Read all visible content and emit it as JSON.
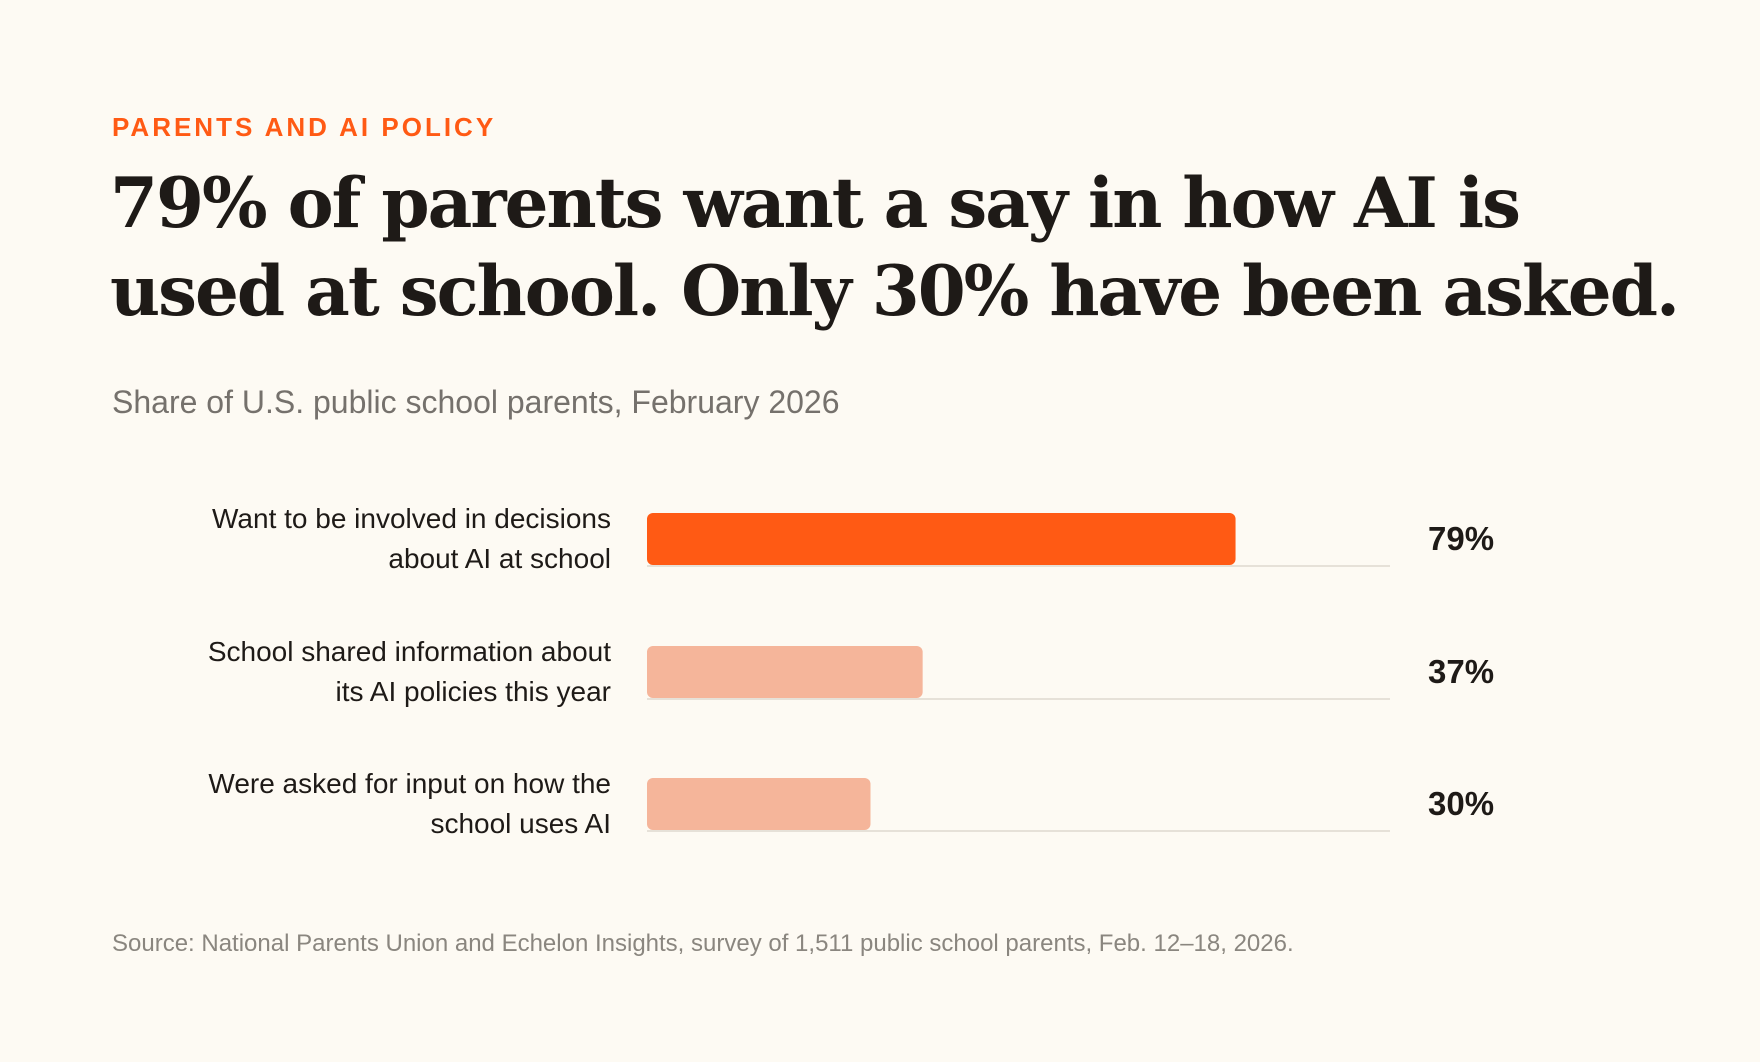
{
  "kicker": "PARENTS AND AI POLICY",
  "headline": "79% of parents want a say in how AI is used at school. Only 30% have been asked.",
  "subtitle": "Share of U.S. public school parents, February 2026",
  "source": "Source: National Parents Union and Echelon Insights, survey of 1,511 public school parents, Feb. 12–18, 2026.",
  "colors": {
    "background": "#fdfaf3",
    "accent": "#ff5a14",
    "muted_bar": "#f5b59a",
    "baseline": "#e6e1d8",
    "text": "#1e1a17"
  },
  "chart_data": {
    "type": "bar",
    "orientation": "horizontal",
    "categories": [
      "Want to be involved in decisions about AI at school",
      "School shared information about its AI policies this year",
      "Were asked for input on how the school uses AI"
    ],
    "category_lines": [
      [
        "Want to be involved in decisions",
        "about AI at school"
      ],
      [
        "School shared information about",
        "its AI policies this year"
      ],
      [
        "Were asked for input on how the",
        "school uses AI"
      ]
    ],
    "values": [
      79,
      37,
      30
    ],
    "value_labels": [
      "79%",
      "37%",
      "30%"
    ],
    "highlight": [
      true,
      false,
      false
    ],
    "xlim": [
      0,
      100
    ],
    "grid": false,
    "legend": "none"
  }
}
